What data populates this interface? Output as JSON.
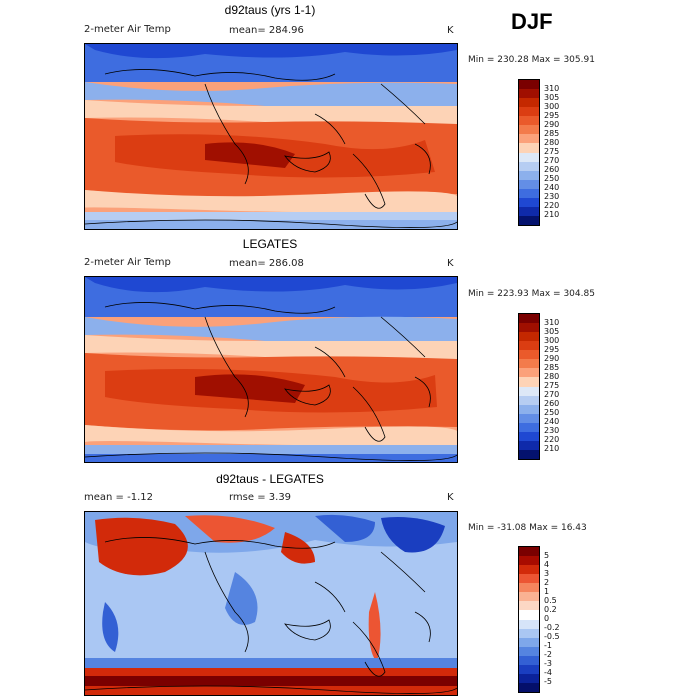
{
  "season": "DJF",
  "panels": [
    {
      "title": "d92taus (yrs 1-1)",
      "variable": "2-meter Air Temp",
      "mean_label": "mean= 284.96",
      "units": "K",
      "minmax": "Min = 230.28 Max = 305.91",
      "colorbar_labels": [
        "310",
        "305",
        "300",
        "295",
        "290",
        "285",
        "280",
        "275",
        "270",
        "260",
        "250",
        "240",
        "230",
        "220",
        "210"
      ]
    },
    {
      "title": "LEGATES",
      "variable": "2-meter Air Temp",
      "mean_label": "mean= 286.08",
      "units": "K",
      "minmax": "Min = 223.93 Max = 304.85",
      "colorbar_labels": [
        "310",
        "305",
        "300",
        "295",
        "290",
        "285",
        "280",
        "275",
        "270",
        "260",
        "250",
        "240",
        "230",
        "220",
        "210"
      ]
    },
    {
      "title": "d92taus - LEGATES",
      "mean_label": "mean =   -1.12",
      "rmse_label": "rmse =    3.39",
      "units": "K",
      "minmax": "Min = -31.08 Max =  16.43",
      "colorbar_labels": [
        "5",
        "4",
        "3",
        "2",
        "1",
        "0.5",
        "0.2",
        "0",
        "-0.2",
        "-0.5",
        "-1",
        "-2",
        "-3",
        "-4",
        "-5"
      ]
    }
  ],
  "colors": {
    "temp_scale": [
      "#7a0000",
      "#a00f00",
      "#c42800",
      "#db3d12",
      "#ea5a2b",
      "#f37b4b",
      "#fba17a",
      "#fdd3b6",
      "#dde8f7",
      "#b6cdf2",
      "#8cb0ec",
      "#638ee6",
      "#3e6de0",
      "#1f48d2",
      "#0f2aaa",
      "#04126e"
    ],
    "diff_scale": [
      "#7a0000",
      "#a80b00",
      "#d22a0a",
      "#ec5533",
      "#f5855e",
      "#fab293",
      "#fcd7c4",
      "#ffffff",
      "#d6e4f9",
      "#aac7f3",
      "#7ea7ea",
      "#5584e0",
      "#3360d4",
      "#1a3ec0",
      "#0b229a",
      "#040f6a"
    ],
    "coast": "#000000"
  }
}
